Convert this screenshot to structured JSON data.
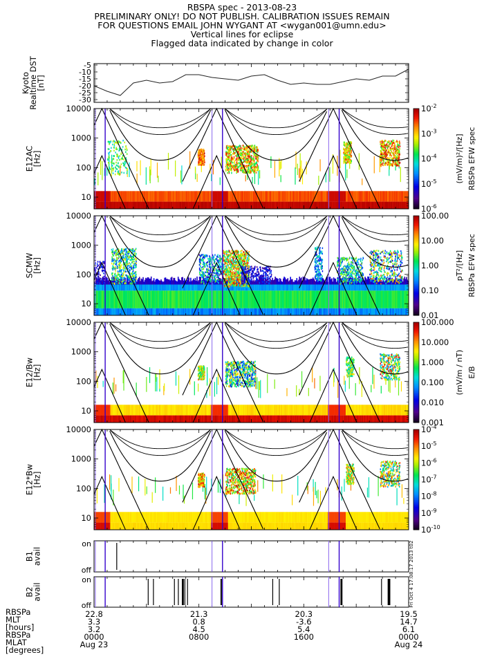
{
  "header": {
    "title": "RBSPA spec - 2013-08-23",
    "line2": "PRELIMINARY ONLY! DO NOT PUBLISH. CALIBRATION ISSUES REMAIN",
    "line3": "FOR QUESTIONS EMAIL JOHN WYGANT AT <wygan001@umn.edu>",
    "line4": "Vertical lines for eclipse",
    "line5": "Flagged data indicated by change in color"
  },
  "side_stamp": "Fri Oct  4 17:08:17 2013 t02",
  "colors": {
    "eclipse_line": "#3300cc",
    "eclipse_line_light": "#8866ee"
  },
  "chart_data": [
    {
      "type": "line",
      "name": "dst",
      "ylabel": "Kyoto Realtime DST [nT]",
      "ylabel_lines": [
        "Kyoto",
        "Realtime DST",
        "[nT]"
      ],
      "ylim": [
        -32,
        -4
      ],
      "yticks": [
        "-5",
        "-10",
        "-15",
        "-20",
        "-25",
        "-30"
      ],
      "ytick_values": [
        -5,
        -10,
        -15,
        -20,
        -25,
        -30
      ],
      "x_hours": [
        0,
        1,
        2,
        3,
        4,
        5,
        6,
        7,
        8,
        9,
        10,
        11,
        12,
        13,
        14,
        15,
        16,
        17,
        18,
        19,
        20,
        21,
        22,
        23,
        24
      ],
      "values": [
        -20,
        -24,
        -27,
        -18,
        -16,
        -18,
        -17,
        -12,
        -12,
        -14,
        -15,
        -16,
        -13,
        -12,
        -16,
        -19,
        -18,
        -19,
        -19,
        -17,
        -15,
        -16,
        -13,
        -13,
        -8
      ]
    },
    {
      "type": "heatmap",
      "name": "e12ac",
      "ylabel_lines": [
        "E12AC",
        "[Hz]"
      ],
      "yscale": "log",
      "ylim": [
        4,
        10000
      ],
      "yticks": [
        "10000",
        "1000",
        "100",
        "10"
      ],
      "colorbar": {
        "ticks": [
          "10",
          "10",
          "10",
          "10",
          "10"
        ],
        "exps": [
          "-2",
          "-3",
          "-4",
          "-5",
          "-6"
        ],
        "label": "(mV/m)²/[Hz]",
        "label2": "RBSPa EFW spec"
      }
    },
    {
      "type": "heatmap",
      "name": "scmw",
      "ylabel_lines": [
        "SCMW",
        "[Hz]"
      ],
      "yscale": "log",
      "ylim": [
        4,
        10000
      ],
      "yticks": [
        "10000",
        "1000",
        "100",
        "10"
      ],
      "colorbar": {
        "ticks": [
          "100.00",
          "10.00",
          "1.00",
          "0.10",
          "0.01"
        ],
        "label": "pT²/[Hz]",
        "label2": "RBSPa EFW spec"
      }
    },
    {
      "type": "heatmap",
      "name": "e12-over-bw",
      "ylabel_lines": [
        "E12/Bw",
        "[Hz]"
      ],
      "yscale": "log",
      "ylim": [
        4,
        10000
      ],
      "yticks": [
        "10000",
        "1000",
        "100",
        "10"
      ],
      "colorbar": {
        "ticks": [
          "100.000",
          "10.000",
          "1.000",
          "0.100",
          "0.010",
          "0.001"
        ],
        "label": "(mV/m / nT)",
        "label2": "E/B"
      }
    },
    {
      "type": "heatmap",
      "name": "e12-times-bw",
      "ylabel_lines": [
        "E12*Bw",
        "[Hz]"
      ],
      "yscale": "log",
      "ylim": [
        4,
        10000
      ],
      "yticks": [
        "10000",
        "1000",
        "100",
        "10"
      ],
      "colorbar": {
        "ticks": [
          "10",
          "10",
          "10",
          "10",
          "10",
          "10",
          "10"
        ],
        "exps": [
          "-4",
          "-5",
          "-6",
          "-7",
          "-8",
          "-9",
          "-10"
        ]
      }
    },
    {
      "type": "line",
      "name": "b1avail",
      "ylabel_lines": [
        "B1",
        "avail"
      ],
      "yticks": [
        "on",
        "off"
      ],
      "on_hours": [
        [
          1.7,
          1.75
        ]
      ]
    },
    {
      "type": "line",
      "name": "b2avail",
      "ylabel_lines": [
        "B2",
        "avail"
      ],
      "yticks": [
        "on",
        "off"
      ],
      "on_hours": [
        [
          4.1,
          4.12
        ],
        [
          4.5,
          4.52
        ],
        [
          6.1,
          6.12
        ],
        [
          6.4,
          6.42
        ],
        [
          6.7,
          6.85
        ],
        [
          6.9,
          6.92
        ],
        [
          7.1,
          7.12
        ],
        [
          9.65,
          9.75
        ],
        [
          13.6,
          13.62
        ],
        [
          14.1,
          14.12
        ],
        [
          18.8,
          18.95
        ],
        [
          21.9,
          21.92
        ],
        [
          22.4,
          22.6
        ]
      ]
    }
  ],
  "eclipse_hours": [
    0.1,
    0.85,
    9.0,
    9.8,
    17.9,
    18.7
  ],
  "xaxis": {
    "row_labels": [
      "RBSPa",
      "MLT",
      "[hours]",
      "RBSPa",
      "MLAT",
      "[degrees]"
    ],
    "columns": [
      {
        "values": [
          "22.8",
          "3.3",
          "3.2",
          "0000",
          "Aug 23"
        ]
      },
      {
        "values": [
          "21.3",
          "0.8",
          "4.5",
          "0800",
          ""
        ]
      },
      {
        "values": [
          "20.3",
          "-3.6",
          "5.4",
          "1600",
          ""
        ]
      },
      {
        "values": [
          "19.5",
          "14.7",
          "6.1",
          "0000",
          "Aug 24"
        ]
      }
    ]
  }
}
